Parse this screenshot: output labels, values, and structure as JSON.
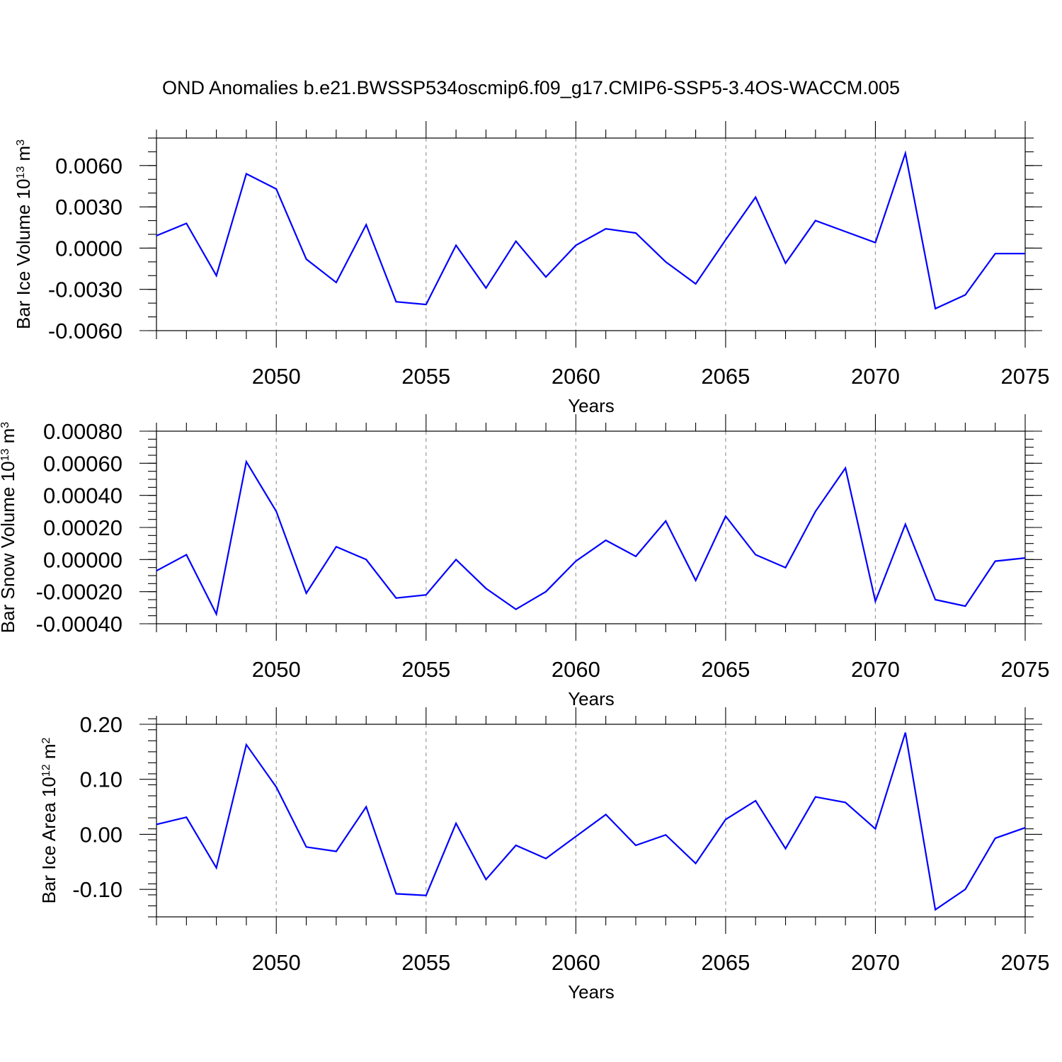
{
  "title": "OND Anomalies b.e21.BWSSP534oscmip6.f09_g17.CMIP6-SSP5-3.4OS-WACCM.005",
  "chart_data": [
    {
      "type": "line",
      "ylabel": {
        "prefix": "Bar Ice Volume 10",
        "exp1": "13",
        "mid": " m",
        "exp2": "3"
      },
      "xlabel": "Years",
      "xlim": [
        2046,
        2075
      ],
      "ylim": [
        -0.006,
        0.008
      ],
      "xticks": [
        2050,
        2055,
        2060,
        2065,
        2070,
        2075
      ],
      "xtick_labels": [
        "2050",
        "2055",
        "2060",
        "2065",
        "2070",
        "2075"
      ],
      "yticks": [
        -0.006,
        -0.003,
        0.0,
        0.003,
        0.006
      ],
      "ytick_labels": [
        "-0.0060",
        "-0.0030",
        "0.0000",
        "0.0030",
        "0.0060"
      ],
      "y_minor_step": 0.001,
      "grid_x": [
        2050,
        2055,
        2060,
        2065,
        2070
      ],
      "series": [
        {
          "name": "Bar Ice Volume",
          "color": "#0000ff",
          "x": [
            2046,
            2047,
            2048,
            2049,
            2050,
            2051,
            2052,
            2053,
            2054,
            2055,
            2056,
            2057,
            2058,
            2059,
            2060,
            2061,
            2062,
            2063,
            2064,
            2065,
            2066,
            2067,
            2068,
            2069,
            2070,
            2071,
            2072,
            2073,
            2074,
            2075
          ],
          "values": [
            0.0009,
            0.0018,
            -0.002,
            0.0054,
            0.0043,
            -0.0008,
            -0.0025,
            0.0017,
            -0.0039,
            -0.0041,
            0.0002,
            -0.0029,
            0.0005,
            -0.0021,
            0.0002,
            0.0014,
            0.0011,
            -0.001,
            -0.0026,
            0.0006,
            0.0037,
            -0.0011,
            0.002,
            0.0012,
            0.0004,
            0.0069,
            -0.0044,
            -0.0034,
            -0.0004,
            -0.0004
          ]
        }
      ]
    },
    {
      "type": "line",
      "ylabel": {
        "prefix": "Bar Snow Volume 10",
        "exp1": "13",
        "mid": " m",
        "exp2": "3"
      },
      "xlabel": "Years",
      "xlim": [
        2046,
        2075
      ],
      "ylim": [
        -0.0004,
        0.0008
      ],
      "xticks": [
        2050,
        2055,
        2060,
        2065,
        2070,
        2075
      ],
      "xtick_labels": [
        "2050",
        "2055",
        "2060",
        "2065",
        "2070",
        "2075"
      ],
      "yticks": [
        -0.0004,
        -0.0002,
        0.0,
        0.0002,
        0.0004,
        0.0006,
        0.0008
      ],
      "ytick_labels": [
        "-0.00040",
        "-0.00020",
        "0.00000",
        "0.00020",
        "0.00040",
        "0.00060",
        "0.00080"
      ],
      "y_minor_step": 5e-05,
      "grid_x": [
        2050,
        2055,
        2060,
        2065,
        2070
      ],
      "series": [
        {
          "name": "Bar Snow Volume",
          "color": "#0000ff",
          "x": [
            2046,
            2047,
            2048,
            2049,
            2050,
            2051,
            2052,
            2053,
            2054,
            2055,
            2056,
            2057,
            2058,
            2059,
            2060,
            2061,
            2062,
            2063,
            2064,
            2065,
            2066,
            2067,
            2068,
            2069,
            2070,
            2071,
            2072,
            2073,
            2074,
            2075
          ],
          "values": [
            -7e-05,
            3e-05,
            -0.00034,
            0.00061,
            0.0003,
            -0.00021,
            8e-05,
            0.0,
            -0.00024,
            -0.00022,
            0.0,
            -0.00018,
            -0.00031,
            -0.0002,
            -1e-05,
            0.00012,
            2e-05,
            0.00024,
            -0.00013,
            0.00027,
            3e-05,
            -5e-05,
            0.0003,
            0.00057,
            -0.00026,
            0.00022,
            -0.00025,
            -0.00029,
            -1e-05,
            1e-05
          ]
        }
      ]
    },
    {
      "type": "line",
      "ylabel": {
        "prefix": "Bar Ice Area 10",
        "exp1": "12",
        "mid": " m",
        "exp2": "2"
      },
      "xlabel": "Years",
      "xlim": [
        2046,
        2075
      ],
      "ylim": [
        -0.15,
        0.2
      ],
      "xticks": [
        2050,
        2055,
        2060,
        2065,
        2070,
        2075
      ],
      "xtick_labels": [
        "2050",
        "2055",
        "2060",
        "2065",
        "2070",
        "2075"
      ],
      "yticks": [
        -0.1,
        0.0,
        0.1,
        0.2
      ],
      "ytick_labels": [
        "-0.10",
        "0.00",
        "0.10",
        "0.20"
      ],
      "y_minor_step": 0.02,
      "grid_x": [
        2050,
        2055,
        2060,
        2065,
        2070
      ],
      "series": [
        {
          "name": "Bar Ice Area",
          "color": "#0000ff",
          "x": [
            2046,
            2047,
            2048,
            2049,
            2050,
            2051,
            2052,
            2053,
            2054,
            2055,
            2056,
            2057,
            2058,
            2059,
            2060,
            2061,
            2062,
            2063,
            2064,
            2065,
            2066,
            2067,
            2068,
            2069,
            2070,
            2071,
            2072,
            2073,
            2074,
            2075
          ],
          "values": [
            0.018,
            0.031,
            -0.061,
            0.163,
            0.086,
            -0.023,
            -0.031,
            0.05,
            -0.108,
            -0.111,
            0.02,
            -0.082,
            -0.02,
            -0.044,
            -0.004,
            0.036,
            -0.02,
            -0.001,
            -0.053,
            0.027,
            0.061,
            -0.026,
            0.068,
            0.058,
            0.01,
            0.185,
            -0.137,
            -0.1,
            -0.007,
            0.012
          ]
        }
      ]
    }
  ]
}
